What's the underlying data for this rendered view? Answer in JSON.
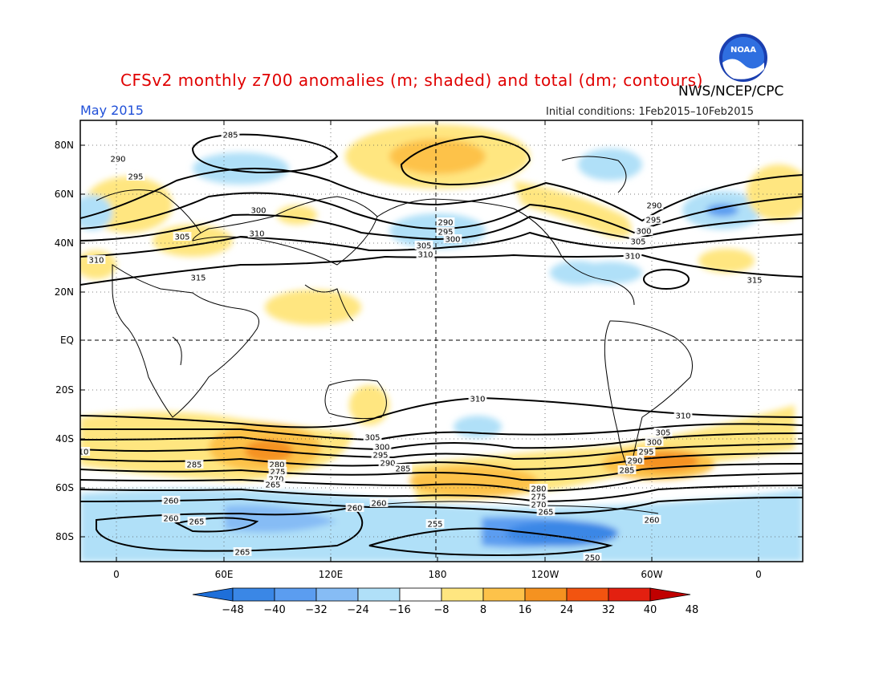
{
  "title": "CFSv2 monthly z700 anomalies (m; shaded) and total (dm; contours)",
  "agency": "NWS/NCEP/CPC",
  "logo_text": "NOAA",
  "period": "May 2015",
  "initial_conditions": "Initial conditions: 1Feb2015–10Feb2015",
  "map": {
    "lat_labels": [
      "80N",
      "60N",
      "40N",
      "20N",
      "EQ",
      "20S",
      "40S",
      "60S",
      "80S"
    ],
    "lon_labels": [
      "0",
      "60E",
      "120E",
      "180",
      "120W",
      "60W",
      "0"
    ]
  },
  "colorbar": {
    "labels": [
      "−48",
      "−40",
      "−32",
      "−24",
      "−16",
      "−8",
      "8",
      "16",
      "24",
      "32",
      "40",
      "48"
    ],
    "colors": [
      "#1e6fd9",
      "#3a87e6",
      "#5b9df0",
      "#86bcf5",
      "#b0e0f8",
      "#ffffff",
      "#ffe680",
      "#fdc24a",
      "#f59220",
      "#f25410",
      "#e32010",
      "#c00000"
    ]
  },
  "contour_labels": [
    {
      "text": "285"
    },
    {
      "text": "290"
    },
    {
      "text": "295"
    },
    {
      "text": "300"
    },
    {
      "text": "305"
    },
    {
      "text": "310"
    },
    {
      "text": "315"
    },
    {
      "text": "290"
    },
    {
      "text": "295"
    },
    {
      "text": "300"
    },
    {
      "text": "305"
    },
    {
      "text": "310"
    },
    {
      "text": "290"
    },
    {
      "text": "295"
    },
    {
      "text": "300"
    },
    {
      "text": "305"
    },
    {
      "text": "310"
    },
    {
      "text": "315"
    },
    {
      "text": "310"
    },
    {
      "text": "310"
    },
    {
      "text": "305"
    },
    {
      "text": "300"
    },
    {
      "text": "295"
    },
    {
      "text": "290"
    },
    {
      "text": "285"
    },
    {
      "text": "310"
    },
    {
      "text": "305"
    },
    {
      "text": "300"
    },
    {
      "text": "295"
    },
    {
      "text": "290"
    },
    {
      "text": "285"
    },
    {
      "text": "285"
    },
    {
      "text": "280"
    },
    {
      "text": "275"
    },
    {
      "text": "270"
    },
    {
      "text": "265"
    },
    {
      "text": "280"
    },
    {
      "text": "275"
    },
    {
      "text": "270"
    },
    {
      "text": "265"
    },
    {
      "text": "260"
    },
    {
      "text": "260"
    },
    {
      "text": "260"
    },
    {
      "text": "265"
    },
    {
      "text": "260"
    },
    {
      "text": "260"
    },
    {
      "text": "255"
    },
    {
      "text": "265"
    },
    {
      "text": "250"
    },
    {
      "text": "10"
    }
  ]
}
